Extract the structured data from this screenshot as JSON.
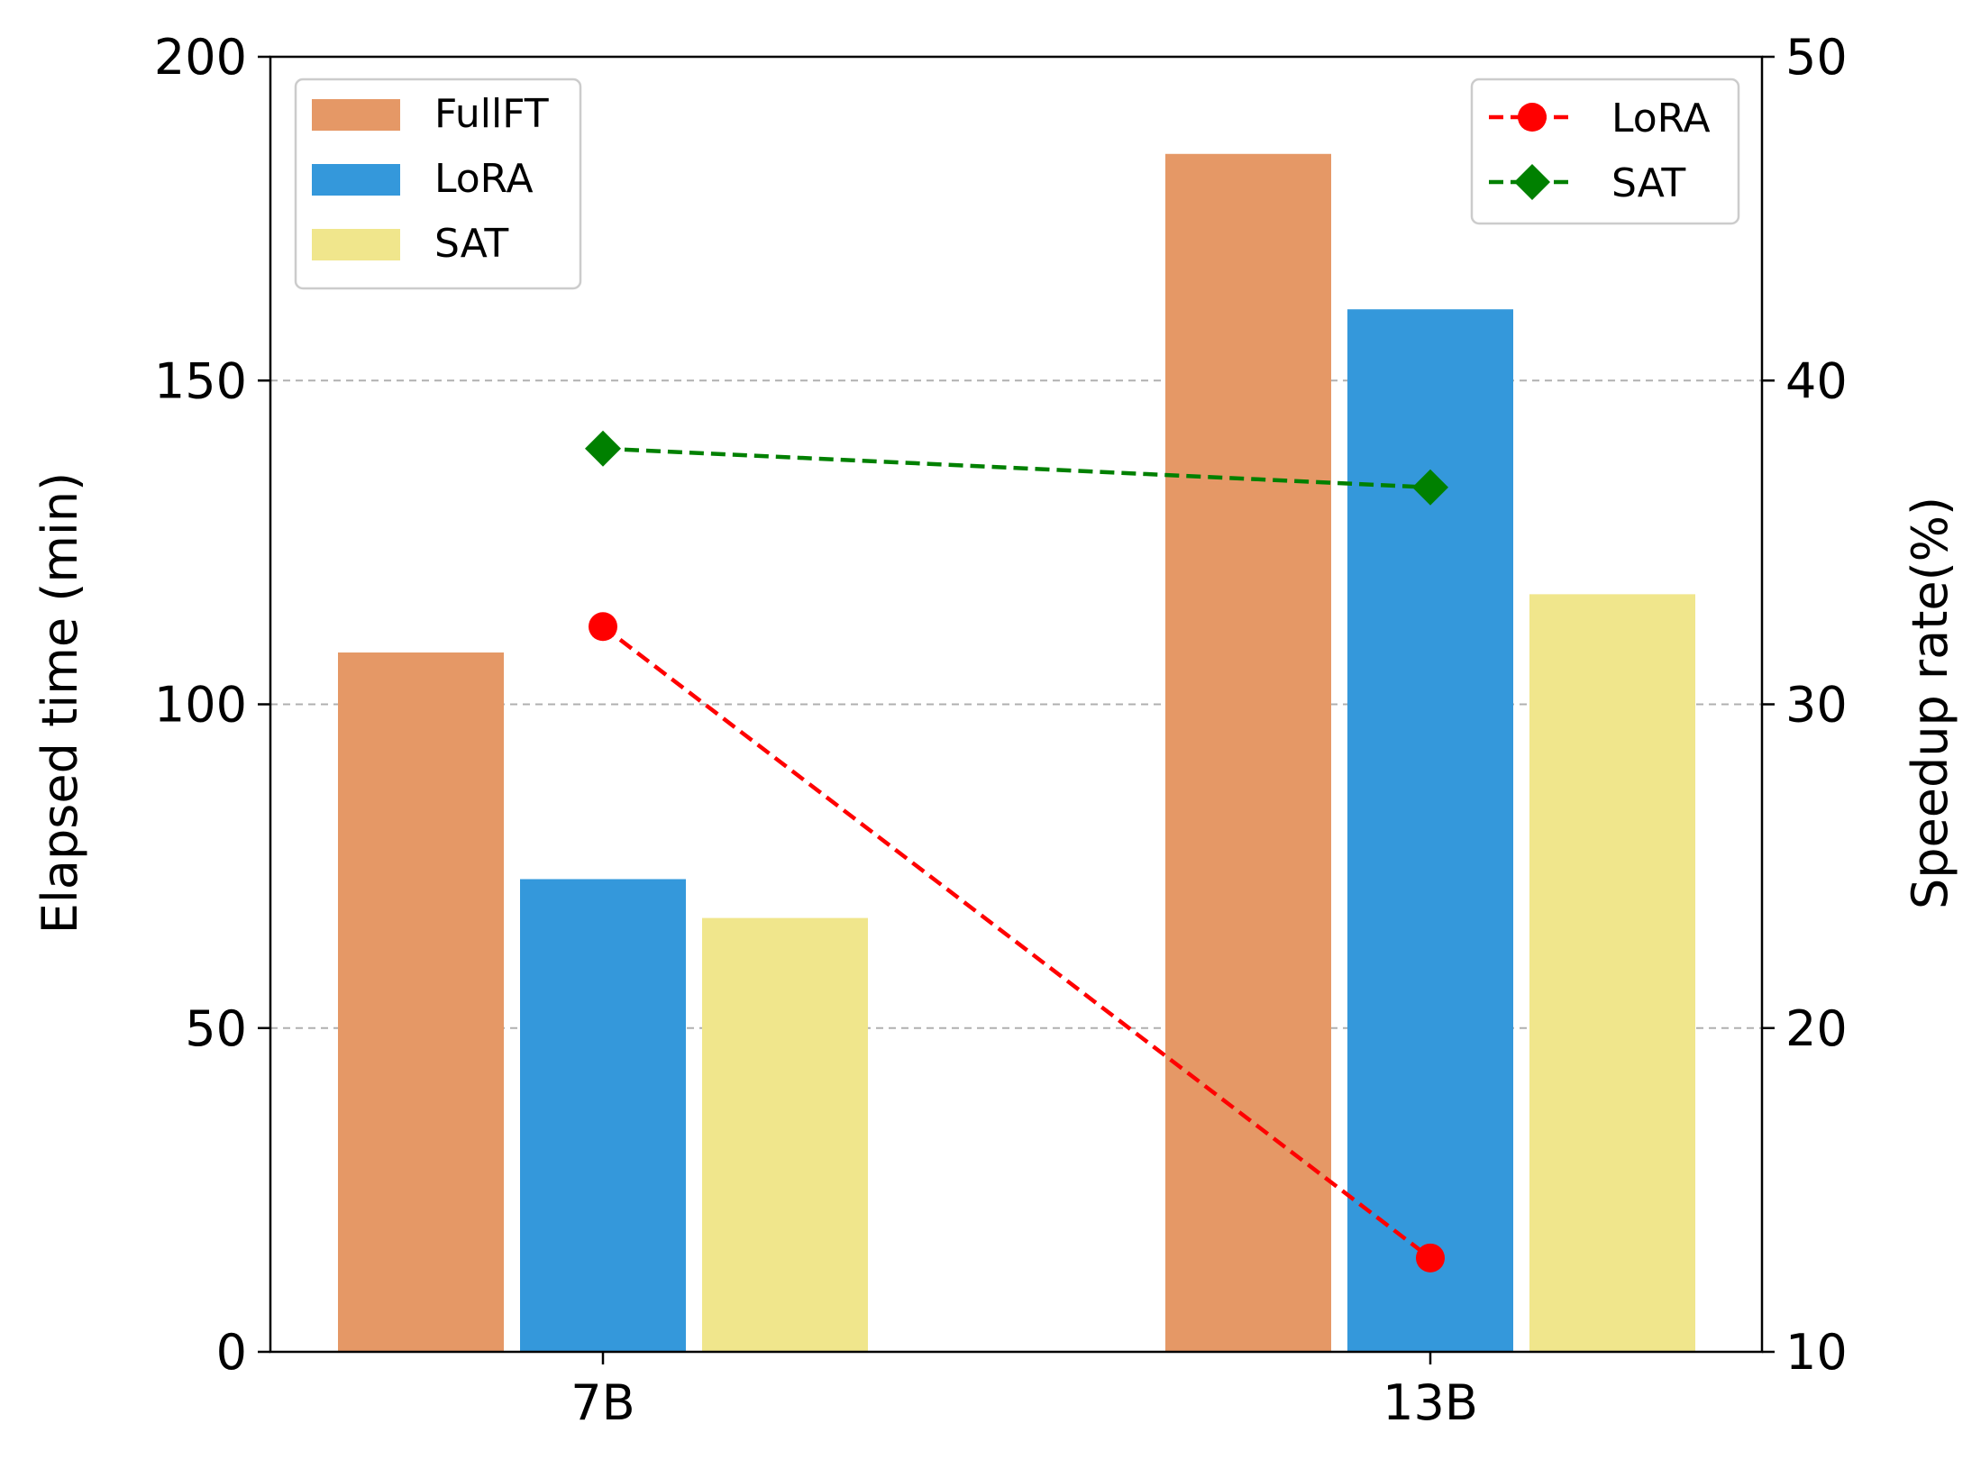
{
  "chart_data": {
    "type": "bar",
    "categories": [
      "7B",
      "13B"
    ],
    "bar_series": [
      {
        "name": "FullFT",
        "values": [
          108,
          185
        ],
        "color": "#E59866"
      },
      {
        "name": "LoRA",
        "values": [
          73,
          161
        ],
        "color": "#3498DB"
      },
      {
        "name": "SAT",
        "values": [
          67,
          117
        ],
        "color": "#F0E68C"
      }
    ],
    "line_series": [
      {
        "name": "LoRA",
        "values": [
          32.4,
          12.9
        ],
        "color": "#FF0000",
        "marker": "circle",
        "linestyle": "dashed"
      },
      {
        "name": "SAT",
        "values": [
          37.9,
          36.7
        ],
        "color": "#008000",
        "marker": "diamond",
        "linestyle": "dashed"
      }
    ],
    "ylabel": "Elapsed time (min)",
    "ylabel_right": "Speedup rate(%)",
    "ylim": [
      0,
      200
    ],
    "ylim_right": [
      10,
      50
    ],
    "yticks": [
      "0",
      "50",
      "100",
      "150",
      "200"
    ],
    "yticks_right": [
      "10",
      "20",
      "30",
      "40",
      "50"
    ],
    "grid": "horizontal dashed",
    "legend_bars_position": "top-left",
    "legend_lines_position": "top-right"
  }
}
